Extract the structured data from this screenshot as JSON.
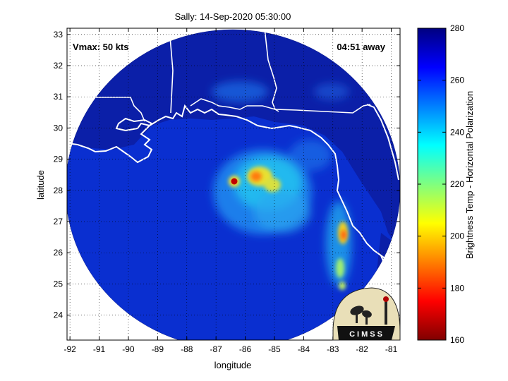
{
  "title": "Sally: 14-Sep-2020 05:30:00",
  "annotations": {
    "vmax": "Vmax: 50 kts",
    "time_away": "04:51 away"
  },
  "axes": {
    "xlabel": "longitude",
    "ylabel": "latitude",
    "x_ticks": [
      "-92",
      "-91",
      "-90",
      "-89",
      "-88",
      "-87",
      "-86",
      "-85",
      "-84",
      "-83",
      "-82",
      "-81"
    ],
    "y_ticks": [
      "24",
      "25",
      "26",
      "27",
      "28",
      "29",
      "30",
      "31",
      "32",
      "33"
    ],
    "xlim": [
      -92.1,
      -80.7
    ],
    "ylim": [
      23.2,
      33.2
    ],
    "grid": "dotted"
  },
  "colorbar": {
    "label": "Brightness Temp - Horizontal Polarization",
    "ticks": [
      "280",
      "260",
      "240",
      "220",
      "200",
      "180",
      "160"
    ],
    "range": [
      160,
      280
    ],
    "colormap": "jet"
  },
  "logo": {
    "text": "CIMSS"
  },
  "storm": {
    "eye_lon": -86.35,
    "eye_lat": 28.35,
    "swath_center_lon": -86.0,
    "swath_center_lat": 27.85
  }
}
